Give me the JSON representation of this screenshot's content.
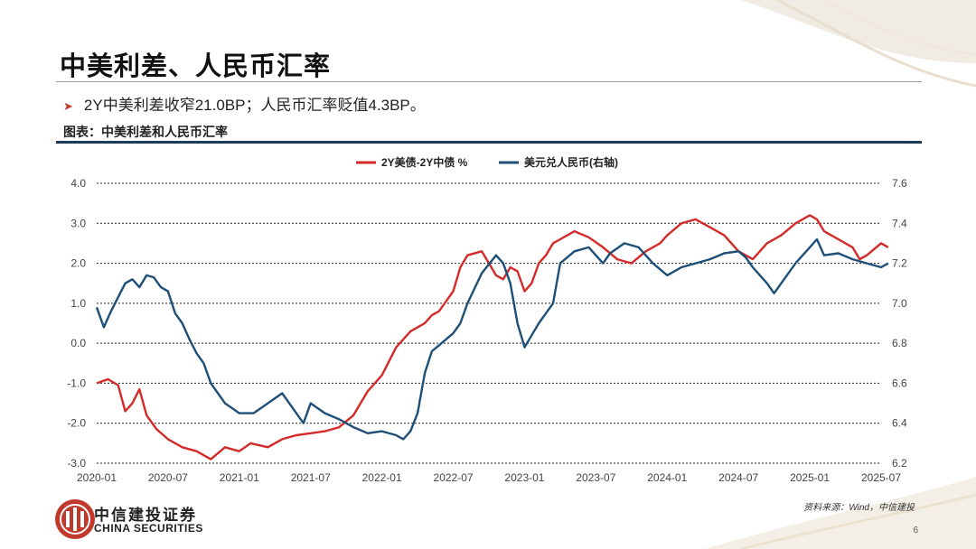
{
  "slide": {
    "title": "中美利差、人民币汇率",
    "bullet": "2Y中美利差收窄21.0BP；人民币汇率贬值4.3BP。",
    "caption": "图表：中美利差和人民币汇率",
    "source": "资料来源：Wind，中信建投",
    "page_number": "6",
    "logo_cn": "中信建投证券",
    "logo_en": "CHINA SECURITIES"
  },
  "colors": {
    "spread": "#d42a2a",
    "fx": "#1d4f79",
    "rule": "#1d3a5c",
    "logo": "#c0392b"
  },
  "chart_data": {
    "type": "line",
    "title": "",
    "xlabel": "",
    "ylabel": "",
    "x_ticks": [
      "2020-01",
      "2020-07",
      "2021-01",
      "2021-07",
      "2022-01",
      "2022-07",
      "2023-01",
      "2023-07",
      "2024-01",
      "2024-07",
      "2025-01",
      "2025-07"
    ],
    "ylim_left": [
      -3.0,
      4.0
    ],
    "y_ticks_left": [
      "-3.0",
      "-2.0",
      "-1.0",
      "0.0",
      "1.0",
      "2.0",
      "3.0",
      "4.0"
    ],
    "ylim_right": [
      6.2,
      7.6
    ],
    "y_ticks_right": [
      "6.2",
      "6.4",
      "6.6",
      "6.8",
      "7.0",
      "7.2",
      "7.4",
      "7.6"
    ],
    "grid": "horizontal",
    "legend_position": "top-center",
    "series": [
      {
        "name": "2Y美债-2Y中债 %",
        "axis": "left",
        "x": [
          2020.0,
          2020.08,
          2020.15,
          2020.2,
          2020.25,
          2020.3,
          2020.35,
          2020.42,
          2020.5,
          2020.6,
          2020.7,
          2020.8,
          2020.9,
          2021.0,
          2021.08,
          2021.2,
          2021.3,
          2021.4,
          2021.5,
          2021.6,
          2021.7,
          2021.8,
          2021.9,
          2022.0,
          2022.1,
          2022.2,
          2022.25,
          2022.3,
          2022.35,
          2022.4,
          2022.5,
          2022.55,
          2022.6,
          2022.7,
          2022.8,
          2022.85,
          2022.9,
          2022.95,
          2023.0,
          2023.05,
          2023.1,
          2023.15,
          2023.2,
          2023.25,
          2023.35,
          2023.45,
          2023.55,
          2023.65,
          2023.75,
          2023.85,
          2023.95,
          2024.0,
          2024.1,
          2024.2,
          2024.3,
          2024.4,
          2024.5,
          2024.6,
          2024.7,
          2024.8,
          2024.9,
          2025.0,
          2025.05,
          2025.1,
          2025.2,
          2025.3,
          2025.35,
          2025.4,
          2025.5,
          2025.55
        ],
        "values": [
          -1.0,
          -0.9,
          -1.05,
          -1.7,
          -1.5,
          -1.15,
          -1.8,
          -2.15,
          -2.4,
          -2.6,
          -2.7,
          -2.9,
          -2.6,
          -2.7,
          -2.5,
          -2.6,
          -2.4,
          -2.3,
          -2.25,
          -2.2,
          -2.1,
          -1.8,
          -1.2,
          -0.8,
          -0.1,
          0.3,
          0.4,
          0.5,
          0.7,
          0.8,
          1.3,
          1.9,
          2.2,
          2.3,
          1.7,
          1.6,
          1.9,
          1.8,
          1.3,
          1.5,
          2.0,
          2.2,
          2.5,
          2.6,
          2.8,
          2.65,
          2.4,
          2.1,
          2.0,
          2.3,
          2.5,
          2.7,
          3.0,
          3.1,
          2.9,
          2.7,
          2.3,
          2.1,
          2.5,
          2.7,
          3.0,
          3.2,
          3.1,
          2.8,
          2.6,
          2.4,
          2.1,
          2.2,
          2.5,
          2.4
        ]
      },
      {
        "name": "美元兑人民币(右轴)",
        "axis": "right",
        "x": [
          2020.0,
          2020.05,
          2020.1,
          2020.15,
          2020.2,
          2020.25,
          2020.3,
          2020.35,
          2020.4,
          2020.45,
          2020.5,
          2020.55,
          2020.6,
          2020.65,
          2020.7,
          2020.75,
          2020.8,
          2020.85,
          2020.9,
          2021.0,
          2021.1,
          2021.2,
          2021.3,
          2021.35,
          2021.4,
          2021.45,
          2021.5,
          2021.6,
          2021.7,
          2021.8,
          2021.9,
          2022.0,
          2022.1,
          2022.15,
          2022.2,
          2022.25,
          2022.3,
          2022.35,
          2022.4,
          2022.45,
          2022.5,
          2022.55,
          2022.6,
          2022.7,
          2022.8,
          2022.85,
          2022.9,
          2022.95,
          2023.0,
          2023.05,
          2023.1,
          2023.15,
          2023.2,
          2023.25,
          2023.35,
          2023.45,
          2023.55,
          2023.6,
          2023.7,
          2023.8,
          2023.9,
          2024.0,
          2024.1,
          2024.2,
          2024.3,
          2024.4,
          2024.5,
          2024.55,
          2024.6,
          2024.7,
          2024.75,
          2024.8,
          2024.9,
          2025.0,
          2025.05,
          2025.1,
          2025.2,
          2025.3,
          2025.4,
          2025.5,
          2025.55
        ],
        "values": [
          6.98,
          6.88,
          6.96,
          7.03,
          7.1,
          7.12,
          7.08,
          7.14,
          7.13,
          7.08,
          7.06,
          6.95,
          6.9,
          6.82,
          6.75,
          6.7,
          6.6,
          6.55,
          6.5,
          6.45,
          6.45,
          6.5,
          6.55,
          6.5,
          6.45,
          6.4,
          6.5,
          6.45,
          6.42,
          6.38,
          6.35,
          6.36,
          6.34,
          6.32,
          6.36,
          6.45,
          6.65,
          6.76,
          6.79,
          6.82,
          6.85,
          6.9,
          7.0,
          7.15,
          7.24,
          7.2,
          7.1,
          6.9,
          6.78,
          6.84,
          6.9,
          6.95,
          7.0,
          7.2,
          7.26,
          7.28,
          7.2,
          7.25,
          7.3,
          7.28,
          7.2,
          7.14,
          7.18,
          7.2,
          7.22,
          7.25,
          7.26,
          7.23,
          7.18,
          7.1,
          7.05,
          7.1,
          7.2,
          7.28,
          7.32,
          7.24,
          7.25,
          7.22,
          7.2,
          7.18,
          7.2
        ]
      }
    ]
  }
}
